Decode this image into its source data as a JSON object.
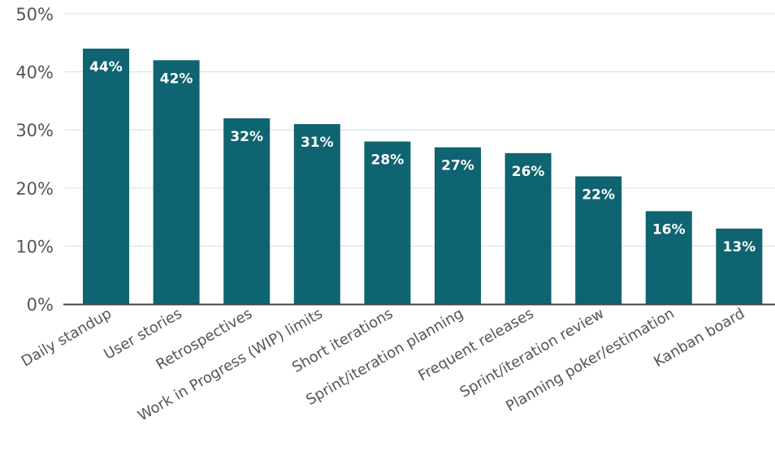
{
  "chart_data": {
    "type": "bar",
    "categories": [
      "Daily standup",
      "User stories",
      "Retrospectives",
      "Work in Progress (WIP) limits",
      "Short iterations",
      "Sprint/iteration planning",
      "Frequent releases",
      "Sprint/iteration review",
      "Planning poker/estimation",
      "Kanban board"
    ],
    "values": [
      44,
      42,
      32,
      31,
      28,
      27,
      26,
      22,
      16,
      13
    ],
    "value_labels": [
      "44%",
      "42%",
      "32%",
      "31%",
      "28%",
      "27%",
      "26%",
      "22%",
      "16%",
      "13%"
    ],
    "yticks": [
      0,
      10,
      20,
      30,
      40,
      50
    ],
    "ytick_labels": [
      "0%",
      "10%",
      "20%",
      "30%",
      "40%",
      "50%"
    ],
    "ylim": [
      0,
      50
    ],
    "grid": true,
    "colors": {
      "bar": "#0e6470",
      "grid": "#cfe3dd",
      "axis": "#444444",
      "text": "#555555",
      "value_text": "#ffffff"
    }
  }
}
